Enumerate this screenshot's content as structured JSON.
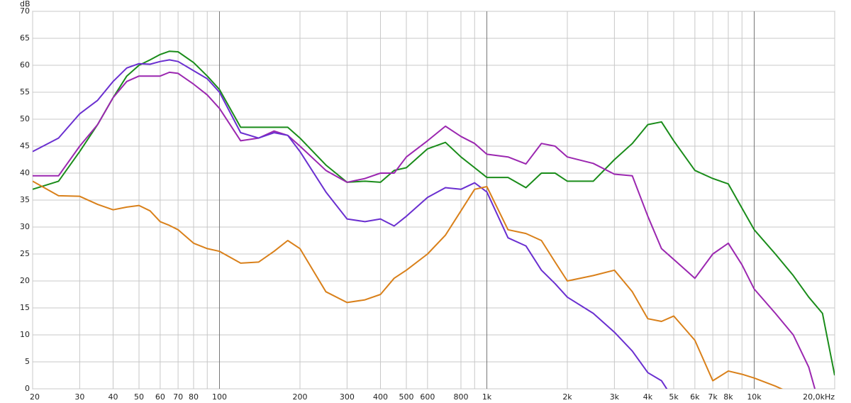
{
  "chart_data": {
    "type": "line",
    "y_label": "dB",
    "xscale": "log",
    "grid": true,
    "xlim": [
      20,
      20000
    ],
    "ylim": [
      0,
      70
    ],
    "xticks": [
      20,
      30,
      40,
      50,
      60,
      70,
      80,
      100,
      200,
      300,
      400,
      500,
      600,
      800,
      {
        "value": 1000,
        "label": "1k"
      },
      {
        "value": 2000,
        "label": "2k"
      },
      {
        "value": 3000,
        "label": "3k"
      },
      {
        "value": 4000,
        "label": "4k"
      },
      {
        "value": 5000,
        "label": "5k"
      },
      {
        "value": 6000,
        "label": "6k"
      },
      {
        "value": 7000,
        "label": "7k"
      },
      {
        "value": 8000,
        "label": "8k"
      },
      {
        "value": 10000,
        "label": "10k"
      },
      {
        "value": 20000,
        "label": "20,0kHz"
      }
    ],
    "xminorticks": [
      90,
      900,
      9000
    ],
    "yticks": [
      0,
      5,
      10,
      15,
      20,
      25,
      30,
      35,
      40,
      45,
      50,
      55,
      60,
      65,
      70
    ],
    "x": [
      20,
      25,
      30,
      35,
      40,
      45,
      50,
      55,
      60,
      65,
      70,
      80,
      90,
      100,
      120,
      140,
      160,
      180,
      200,
      250,
      300,
      350,
      400,
      450,
      500,
      600,
      700,
      800,
      900,
      1000,
      1200,
      1400,
      1600,
      1800,
      2000,
      2500,
      3000,
      3500,
      4000,
      4500,
      5000,
      6000,
      7000,
      8000,
      9000,
      10000,
      12000,
      14000,
      16000,
      18000,
      20000
    ],
    "series": [
      {
        "color": "#1a8c1a",
        "values": [
          37,
          38.5,
          44,
          49,
          54,
          58,
          60,
          61,
          62,
          62.6,
          62.5,
          60.5,
          58,
          55.5,
          48.5,
          48.5,
          48.5,
          48.5,
          46.5,
          41.5,
          38.3,
          38.5,
          38.3,
          40.5,
          41,
          44.5,
          45.7,
          43,
          41,
          39.2,
          39.2,
          37.3,
          40,
          40,
          38.5,
          38.5,
          42.5,
          45.5,
          49,
          49.5,
          46,
          40.5,
          39,
          38,
          33.5,
          29.5,
          25,
          21,
          17,
          14,
          2.5
        ]
      },
      {
        "color": "#9b27b0",
        "values": [
          39.5,
          39.5,
          45,
          49,
          54,
          57,
          58,
          58,
          58,
          58.7,
          58.5,
          56.5,
          54.5,
          52,
          46,
          46.5,
          47.8,
          47,
          45,
          40.5,
          38.3,
          39,
          40,
          40,
          43,
          46,
          48.7,
          46.8,
          45.5,
          43.5,
          43,
          41.7,
          45.5,
          45,
          43,
          41.8,
          39.8,
          39.5,
          32,
          26,
          24,
          20.5,
          25,
          27,
          23,
          18.5,
          14,
          10,
          4,
          -5,
          null
        ]
      },
      {
        "color": "#6a2fd0",
        "values": [
          44,
          46.5,
          51,
          53.5,
          57,
          59.5,
          60.3,
          60.2,
          60.7,
          61,
          60.7,
          59,
          57.5,
          55,
          47.5,
          46.5,
          47.5,
          47,
          44,
          36.5,
          31.5,
          31,
          31.5,
          30.2,
          32,
          35.5,
          37.3,
          37,
          38.2,
          36.5,
          28,
          26.5,
          22,
          19.5,
          17,
          14,
          10.5,
          7,
          3,
          1.5,
          -2,
          null,
          null,
          null,
          null,
          null,
          null,
          null,
          null,
          null,
          null
        ]
      },
      {
        "color": "#d9801a",
        "values": [
          38.5,
          35.8,
          35.7,
          34.2,
          33.2,
          33.7,
          34,
          33,
          31,
          30.3,
          29.5,
          27,
          26,
          25.5,
          23.3,
          23.5,
          25.5,
          27.5,
          26,
          18,
          16,
          16.5,
          17.5,
          20.5,
          22,
          25,
          28.5,
          33,
          37,
          37.5,
          29.5,
          28.8,
          27.5,
          23.5,
          20,
          21,
          22,
          18,
          13,
          12.5,
          13.5,
          9,
          1.5,
          3.3,
          2.7,
          2,
          0.5,
          -1,
          null,
          null,
          null
        ]
      }
    ]
  }
}
